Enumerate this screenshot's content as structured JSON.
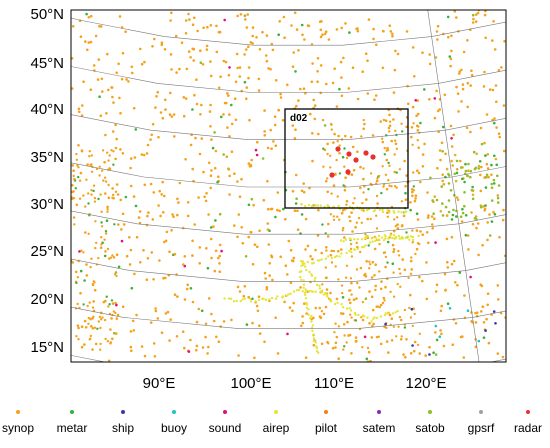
{
  "map": {
    "lat_labels": [
      "50°N",
      "45°N",
      "40°N",
      "35°N",
      "30°N",
      "25°N",
      "20°N",
      "15°N"
    ],
    "lon_labels": [
      "90°E",
      "100°E",
      "110°E",
      "120°E"
    ],
    "nested_domain_label": "d02",
    "colors": {
      "graticule": "#777777",
      "coastline": "#333333",
      "frame": "#000000",
      "domain_box": "#000000"
    }
  },
  "legend": [
    {
      "label": "synop",
      "color": "#f5a21b"
    },
    {
      "label": "metar",
      "color": "#3cb03c"
    },
    {
      "label": "ship",
      "color": "#3a3aa8"
    },
    {
      "label": "buoy",
      "color": "#1cc4c4"
    },
    {
      "label": "sound",
      "color": "#e0107a"
    },
    {
      "label": "airep",
      "color": "#e4e63a"
    },
    {
      "label": "pilot",
      "color": "#f57f17"
    },
    {
      "label": "satem",
      "color": "#8a2bb0"
    },
    {
      "label": "satob",
      "color": "#8fbf2a"
    },
    {
      "label": "gpsrf",
      "color": "#a0a0a0"
    },
    {
      "label": "radar",
      "color": "#e83030"
    }
  ]
}
